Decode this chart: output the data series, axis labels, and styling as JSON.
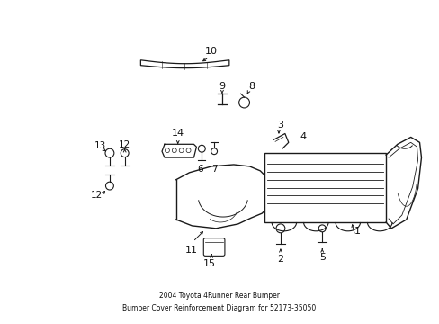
{
  "title": "2004 Toyota 4Runner Rear Bumper\nBumper Cover Reinforcement Diagram for 52173-35050",
  "bg_color": "#ffffff",
  "line_color": "#1a1a1a",
  "text_color": "#111111",
  "fig_width": 4.89,
  "fig_height": 3.6,
  "dpi": 100
}
